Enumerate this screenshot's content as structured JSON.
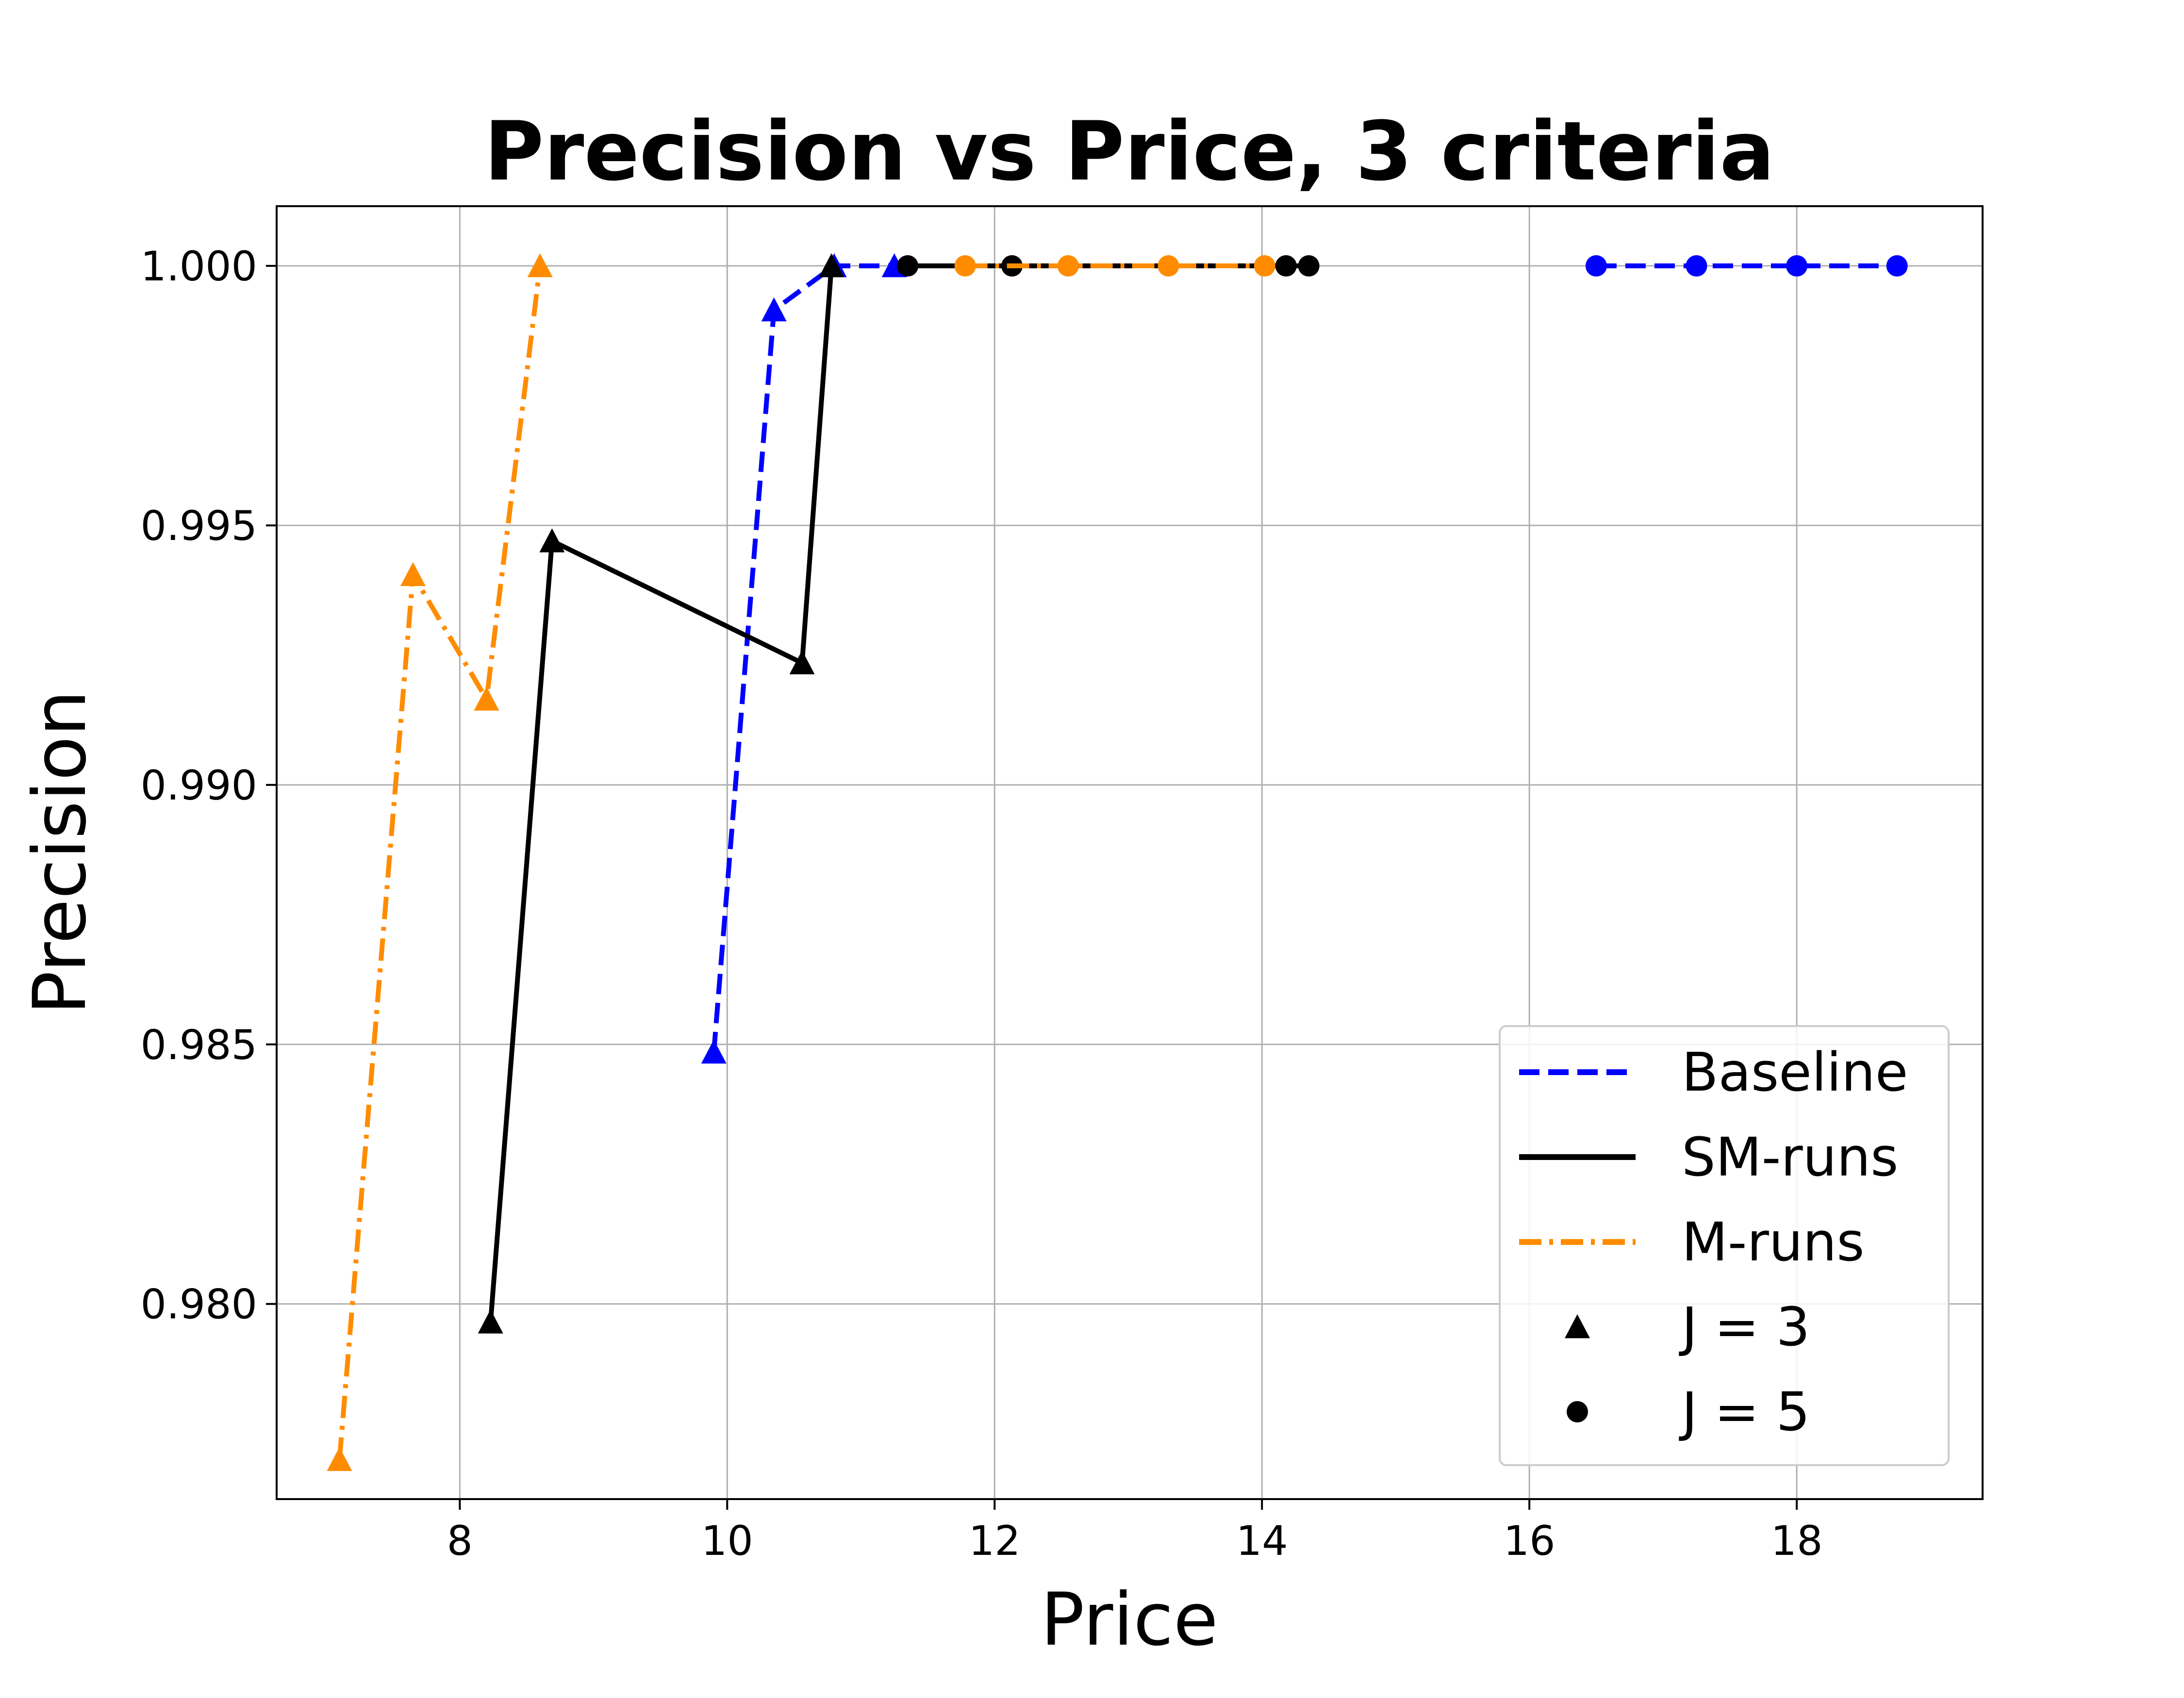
{
  "chart_data": {
    "type": "line",
    "title": "Precision vs Price, 3 criteria",
    "xlabel": "Price",
    "ylabel": "Precision",
    "xlim": [
      6.63,
      19.39
    ],
    "ylim": [
      0.97624,
      1.00115
    ],
    "xticks": [
      "8",
      "10",
      "12",
      "14",
      "16",
      "18"
    ],
    "yticks": [
      "0.980",
      "0.985",
      "0.990",
      "0.995",
      "1.000"
    ],
    "grid": true,
    "legend_position": "lower-right",
    "series": [
      {
        "name": "Baseline",
        "color": "#0000ff",
        "style": "dashed",
        "segments": [
          {
            "marker": "triangle",
            "x": [
              9.9,
              10.35,
              10.8,
              11.25
            ],
            "y": [
              0.98485,
              0.99915,
              1.0,
              1.0
            ]
          },
          {
            "marker": "circle",
            "x": [
              16.5,
              17.25,
              18.0,
              18.75
            ],
            "y": [
              1.0,
              1.0,
              1.0,
              1.0
            ]
          }
        ]
      },
      {
        "name": "SM-runs",
        "color": "#000000",
        "style": "solid",
        "segments": [
          {
            "marker": "triangle",
            "x": [
              8.23,
              8.69,
              10.56,
              10.78
            ],
            "y": [
              0.97965,
              0.9947,
              0.99235,
              1.0
            ]
          },
          {
            "marker": "circle",
            "x": [
              11.35,
              12.13,
              14.18,
              14.35
            ],
            "y": [
              1.0,
              1.0,
              1.0,
              1.0
            ]
          }
        ]
      },
      {
        "name": "M-runs",
        "color": "#ff8c00",
        "style": "dashdot",
        "segments": [
          {
            "marker": "triangle",
            "x": [
              7.1,
              7.65,
              8.2,
              8.6
            ],
            "y": [
              0.977,
              0.99405,
              0.99165,
              1.0
            ]
          },
          {
            "marker": "circle",
            "x": [
              11.78,
              12.55,
              13.3,
              14.02
            ],
            "y": [
              1.0,
              1.0,
              1.0,
              1.0
            ]
          }
        ]
      }
    ],
    "marker_legend": [
      {
        "label": "J = 3",
        "marker": "triangle"
      },
      {
        "label": "J = 5",
        "marker": "circle"
      }
    ]
  }
}
